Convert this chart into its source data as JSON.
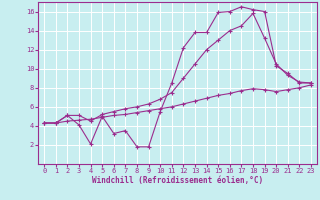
{
  "xlabel": "Windchill (Refroidissement éolien,°C)",
  "background_color": "#c8eef0",
  "grid_color": "#ffffff",
  "line_color": "#9b2d8e",
  "xmin": 0,
  "xmax": 23,
  "ymin": 0,
  "ymax": 17,
  "yticks": [
    2,
    4,
    6,
    8,
    10,
    12,
    14,
    16
  ],
  "xticks": [
    0,
    1,
    2,
    3,
    4,
    5,
    6,
    7,
    8,
    9,
    10,
    11,
    12,
    13,
    14,
    15,
    16,
    17,
    18,
    19,
    20,
    21,
    22,
    23
  ],
  "line1_x": [
    0,
    1,
    2,
    3,
    4,
    5,
    6,
    7,
    8,
    9,
    10,
    11,
    12,
    13,
    14,
    15,
    16,
    17,
    18,
    19,
    20,
    21,
    22,
    23
  ],
  "line1_y": [
    4.3,
    4.3,
    5.1,
    4.1,
    2.1,
    5.0,
    3.2,
    3.5,
    1.8,
    1.8,
    5.5,
    8.5,
    12.2,
    13.8,
    13.8,
    15.9,
    16.0,
    16.5,
    16.2,
    16.0,
    10.3,
    9.5,
    8.5,
    8.5
  ],
  "line2_x": [
    0,
    1,
    2,
    3,
    4,
    5,
    6,
    7,
    8,
    9,
    10,
    11,
    12,
    13,
    14,
    15,
    16,
    17,
    18,
    19,
    20,
    21,
    22,
    23
  ],
  "line2_y": [
    4.3,
    4.3,
    5.1,
    5.1,
    4.5,
    5.2,
    5.5,
    5.8,
    6.0,
    6.3,
    6.8,
    7.5,
    9.0,
    10.5,
    12.0,
    13.0,
    14.0,
    14.5,
    15.8,
    13.2,
    10.5,
    9.3,
    8.6,
    8.5
  ],
  "line3_x": [
    0,
    1,
    2,
    3,
    4,
    5,
    6,
    7,
    8,
    9,
    10,
    11,
    12,
    13,
    14,
    15,
    16,
    17,
    18,
    19,
    20,
    21,
    22,
    23
  ],
  "line3_y": [
    4.3,
    4.3,
    4.5,
    4.6,
    4.7,
    4.9,
    5.1,
    5.2,
    5.4,
    5.6,
    5.8,
    6.0,
    6.3,
    6.6,
    6.9,
    7.2,
    7.4,
    7.7,
    7.9,
    7.8,
    7.6,
    7.8,
    8.0,
    8.3
  ]
}
